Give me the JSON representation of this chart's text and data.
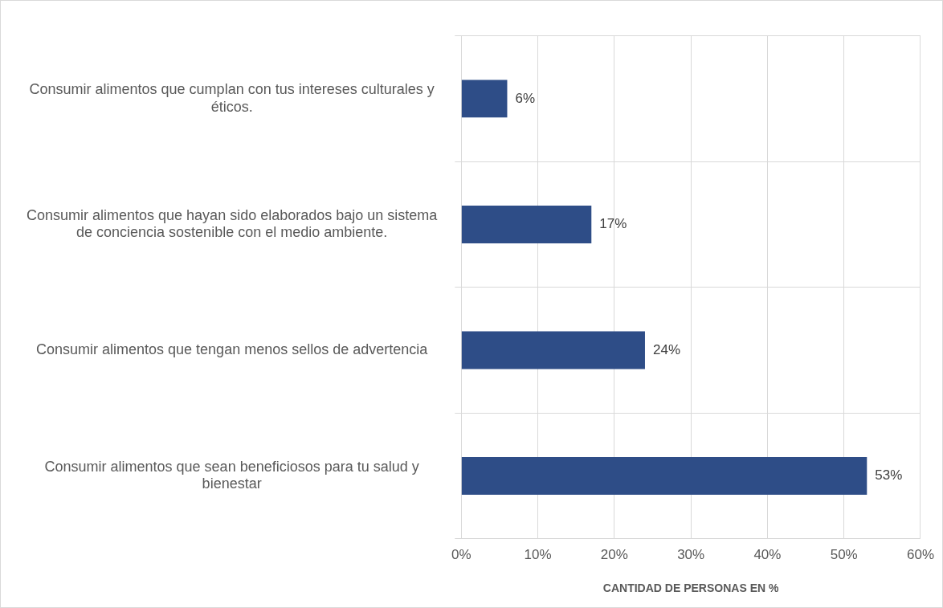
{
  "chart_data": {
    "type": "bar",
    "orientation": "horizontal",
    "xlabel": "CANTIDAD DE PERSONAS EN %",
    "categories": [
      "Consumir alimentos que cumplan con tus intereses culturales y éticos.",
      "Consumir alimentos que hayan sido elaborados bajo un sistema de conciencia sostenible con el medio ambiente.",
      "Consumir alimentos que tengan menos sellos de advertencia",
      "Consumir alimentos que sean beneficiosos para tu salud y bienestar"
    ],
    "values": [
      6,
      17,
      24,
      53
    ],
    "value_labels": [
      "6%",
      "17%",
      "24%",
      "53%"
    ],
    "color": "#2e4d87",
    "xlim": [
      0,
      60
    ],
    "xticks": [
      {
        "value": 0,
        "label": "0%"
      },
      {
        "value": 10,
        "label": "10%"
      },
      {
        "value": 20,
        "label": "20%"
      },
      {
        "value": 30,
        "label": "30%"
      },
      {
        "value": 40,
        "label": "40%"
      },
      {
        "value": 50,
        "label": "50%"
      },
      {
        "value": 60,
        "label": "60%"
      }
    ],
    "grid": true,
    "legend": false
  }
}
